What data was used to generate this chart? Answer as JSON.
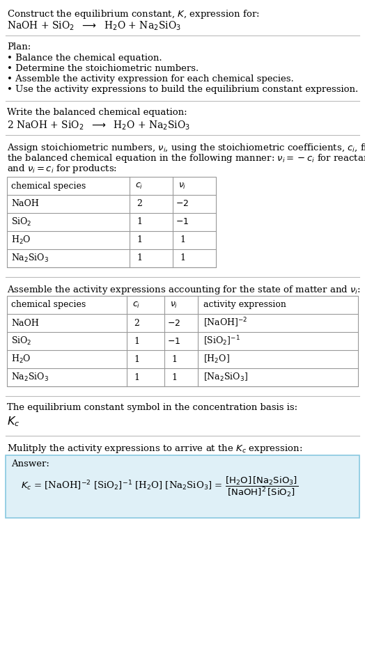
{
  "bg_color": "#ffffff",
  "text_color": "#000000",
  "section_bg": "#dff0f7",
  "title_text": "Construct the equilibrium constant, $K$, expression for:",
  "reaction_unbalanced": "NaOH + SiO$_2$  $\\longrightarrow$  H$_2$O + Na$_2$SiO$_3$",
  "plan_title": "Plan:",
  "plan_bullets": [
    "• Balance the chemical equation.",
    "• Determine the stoichiometric numbers.",
    "• Assemble the activity expression for each chemical species.",
    "• Use the activity expressions to build the equilibrium constant expression."
  ],
  "balanced_title": "Write the balanced chemical equation:",
  "reaction_balanced": "2 NaOH + SiO$_2$  $\\longrightarrow$  H$_2$O + Na$_2$SiO$_3$",
  "stoich_title_lines": [
    "Assign stoichiometric numbers, $\\nu_i$, using the stoichiometric coefficients, $c_i$, from",
    "the balanced chemical equation in the following manner: $\\nu_i = -c_i$ for reactants",
    "and $\\nu_i = c_i$ for products:"
  ],
  "table1_headers": [
    "chemical species",
    "$c_i$",
    "$\\nu_i$"
  ],
  "table1_rows": [
    [
      "NaOH",
      "2",
      "$-2$"
    ],
    [
      "SiO$_2$",
      "1",
      "$-1$"
    ],
    [
      "H$_2$O",
      "1",
      "1"
    ],
    [
      "Na$_2$SiO$_3$",
      "1",
      "1"
    ]
  ],
  "activity_title": "Assemble the activity expressions accounting for the state of matter and $\\nu_i$:",
  "table2_headers": [
    "chemical species",
    "$c_i$",
    "$\\nu_i$",
    "activity expression"
  ],
  "table2_rows": [
    [
      "NaOH",
      "2",
      "$-2$",
      "[NaOH]$^{-2}$"
    ],
    [
      "SiO$_2$",
      "1",
      "$-1$",
      "[SiO$_2$]$^{-1}$"
    ],
    [
      "H$_2$O",
      "1",
      "1",
      "[H$_2$O]"
    ],
    [
      "Na$_2$SiO$_3$",
      "1",
      "1",
      "[Na$_2$SiO$_3$]"
    ]
  ],
  "kc_title": "The equilibrium constant symbol in the concentration basis is:",
  "kc_symbol": "$K_c$",
  "multiply_title": "Mulitply the activity expressions to arrive at the $K_c$ expression:",
  "answer_label": "Answer:",
  "answer_eq": "$K_c$ = [NaOH]$^{-2}$ [SiO$_2$]$^{-1}$ [H$_2$O] [Na$_2$SiO$_3$] = $\\dfrac{\\mathrm{[H_2O]\\,[Na_2SiO_3]}}{\\mathrm{[NaOH]^2\\,[SiO_2]}}$",
  "divider_color": "#bbbbbb",
  "table_border_color": "#999999",
  "answer_border_color": "#88c8e0"
}
